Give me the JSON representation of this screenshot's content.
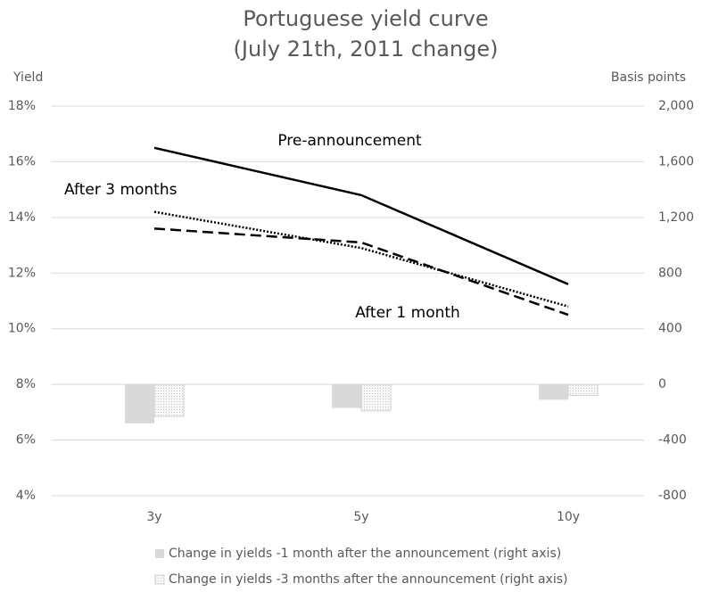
{
  "chart_data": {
    "type": "line",
    "title": "Portuguese yield curve",
    "subtitle": "(July 21th, 2011 change)",
    "y_label": "Yield",
    "y2_label": "Basis points",
    "categories": [
      "3y",
      "5y",
      "10y"
    ],
    "ylim": [
      4,
      18
    ],
    "yticks": [
      {
        "value": 4,
        "label": "4%"
      },
      {
        "value": 6,
        "label": "6%"
      },
      {
        "value": 8,
        "label": "8%"
      },
      {
        "value": 10,
        "label": "10%"
      },
      {
        "value": 12,
        "label": "12%"
      },
      {
        "value": 14,
        "label": "14%"
      },
      {
        "value": 16,
        "label": "16%"
      },
      {
        "value": 18,
        "label": "18%"
      }
    ],
    "y2lim": [
      -800,
      2000
    ],
    "y2ticks": [
      -800,
      -400,
      0,
      400,
      {
        "value": 800,
        "label": "800"
      },
      {
        "value": 1200,
        "label": "1,200"
      },
      {
        "value": 1600,
        "label": "1,600"
      },
      {
        "value": 2000,
        "label": "2,000"
      }
    ],
    "grid": true,
    "legend": "bottom",
    "series": [
      {
        "name": "Pre-announcement",
        "type": "line",
        "dash": "solid",
        "color": "#000000",
        "values": [
          16.5,
          14.8,
          11.6
        ]
      },
      {
        "name": "After 1 month",
        "type": "line",
        "dash": "dashed",
        "color": "#000000",
        "values": [
          13.6,
          13.1,
          10.5
        ]
      },
      {
        "name": "After 3 months",
        "type": "line",
        "dash": "dotted",
        "color": "#000000",
        "values": [
          14.2,
          12.9,
          10.8
        ]
      },
      {
        "name": "Change in yields -1 month after the announcement (right axis)",
        "type": "bar",
        "axis": "y2",
        "color": "#d9d9d9",
        "values": [
          -280,
          -170,
          -110
        ]
      },
      {
        "name": "Change in yields -3 months after the announcement (right axis)",
        "type": "bar",
        "axis": "y2",
        "color": "#f2f2f2",
        "values": [
          -230,
          -190,
          -80
        ]
      }
    ]
  }
}
